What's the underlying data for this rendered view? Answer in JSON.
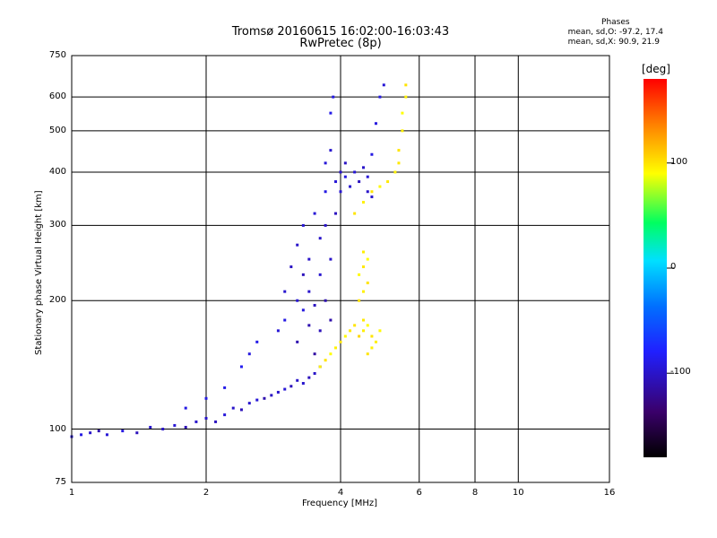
{
  "title_line1": "Tromsø 20160615 16:02:00-16:03:43",
  "title_line2": "RwPretec (8p)",
  "phases": {
    "label": "Phases",
    "o_line": "mean, sd,O: -97.2, 17.4",
    "x_line": "mean, sd,X: 90.9, 21.9"
  },
  "chart_data": {
    "type": "scatter",
    "xlabel": "Frequency [MHz]",
    "ylabel": "Stationary phase Virtual Height [km]",
    "xscale": "log",
    "yscale": "log",
    "xlim": [
      1,
      16
    ],
    "ylim": [
      75,
      750
    ],
    "xticks": [
      1,
      2,
      4,
      6,
      8,
      10,
      16
    ],
    "yticks": [
      75,
      100,
      200,
      300,
      400,
      500,
      600,
      750
    ],
    "colorbar": {
      "unit": "[deg]",
      "range": [
        -180,
        180
      ],
      "ticks": [
        100,
        0,
        -100
      ],
      "colors": [
        "#000000",
        "#3a006a",
        "#2020ff",
        "#0070ff",
        "#00e0ff",
        "#00ff60",
        "#ffff00",
        "#ff8000",
        "#ff0000"
      ]
    },
    "series": [
      {
        "mode": "O",
        "points": [
          [
            1.0,
            96,
            -95
          ],
          [
            1.05,
            97,
            -90
          ],
          [
            1.1,
            98,
            -100
          ],
          [
            1.15,
            99,
            -110
          ],
          [
            1.2,
            97,
            -95
          ],
          [
            1.3,
            99,
            -92
          ],
          [
            1.4,
            98,
            -105
          ],
          [
            1.5,
            101,
            -98
          ],
          [
            1.6,
            100,
            -100
          ],
          [
            1.7,
            102,
            -96
          ],
          [
            1.8,
            101,
            -108
          ],
          [
            1.9,
            104,
            -99
          ],
          [
            2.0,
            106,
            -100
          ],
          [
            2.1,
            104,
            -104
          ],
          [
            2.2,
            108,
            -94
          ],
          [
            2.3,
            112,
            -100
          ],
          [
            2.4,
            111,
            -106
          ],
          [
            2.5,
            115,
            -98
          ],
          [
            2.6,
            117,
            -95
          ],
          [
            2.7,
            118,
            -110
          ],
          [
            2.8,
            120,
            -102
          ],
          [
            2.9,
            122,
            -99
          ],
          [
            3.0,
            124,
            -95
          ],
          [
            3.1,
            126,
            -106
          ],
          [
            3.2,
            130,
            -100
          ],
          [
            3.3,
            128,
            -98
          ],
          [
            3.4,
            132,
            -105
          ],
          [
            3.5,
            135,
            -100
          ],
          [
            3.6,
            140,
            -92
          ],
          [
            1.8,
            112,
            -90
          ],
          [
            2.0,
            118,
            -90
          ],
          [
            2.2,
            125,
            -88
          ],
          [
            2.4,
            140,
            -85
          ],
          [
            2.5,
            150,
            -92
          ],
          [
            2.6,
            160,
            -88
          ],
          [
            2.9,
            170,
            -95
          ],
          [
            3.0,
            180,
            -90
          ],
          [
            3.0,
            210,
            -98
          ],
          [
            3.1,
            240,
            -102
          ],
          [
            3.2,
            200,
            -96
          ],
          [
            3.2,
            270,
            -100
          ],
          [
            3.2,
            160,
            -110
          ],
          [
            3.3,
            230,
            -105
          ],
          [
            3.3,
            190,
            -92
          ],
          [
            3.3,
            300,
            -96
          ],
          [
            3.4,
            250,
            -100
          ],
          [
            3.4,
            175,
            -110
          ],
          [
            3.4,
            210,
            -99
          ],
          [
            3.5,
            320,
            -95
          ],
          [
            3.5,
            195,
            -104
          ],
          [
            3.5,
            150,
            -115
          ],
          [
            3.6,
            280,
            -100
          ],
          [
            3.6,
            230,
            -98
          ],
          [
            3.6,
            170,
            -106
          ],
          [
            3.7,
            360,
            -90
          ],
          [
            3.7,
            420,
            -95
          ],
          [
            3.7,
            300,
            -100
          ],
          [
            3.7,
            200,
            -110
          ],
          [
            3.8,
            450,
            -98
          ],
          [
            3.8,
            550,
            -88
          ],
          [
            3.8,
            250,
            -100
          ],
          [
            3.8,
            180,
            -112
          ],
          [
            3.85,
            600,
            -90
          ],
          [
            3.9,
            380,
            -95
          ],
          [
            3.9,
            320,
            -104
          ],
          [
            4.0,
            400,
            -100
          ],
          [
            4.0,
            360,
            -96
          ],
          [
            4.1,
            420,
            -102
          ],
          [
            4.1,
            390,
            -92
          ],
          [
            4.2,
            370,
            -98
          ],
          [
            4.3,
            400,
            -95
          ],
          [
            4.4,
            380,
            -104
          ],
          [
            4.5,
            410,
            -100
          ],
          [
            4.6,
            390,
            -96
          ],
          [
            4.7,
            440,
            -90
          ],
          [
            4.8,
            520,
            -92
          ],
          [
            4.9,
            600,
            -90
          ],
          [
            5.0,
            640,
            -95
          ],
          [
            4.6,
            360,
            -100
          ],
          [
            4.7,
            350,
            -98
          ]
        ]
      },
      {
        "mode": "X",
        "points": [
          [
            3.6,
            140,
            95
          ],
          [
            3.7,
            145,
            100
          ],
          [
            3.8,
            150,
            90
          ],
          [
            3.9,
            155,
            95
          ],
          [
            4.0,
            160,
            100
          ],
          [
            4.1,
            165,
            92
          ],
          [
            4.2,
            170,
            98
          ],
          [
            4.3,
            175,
            100
          ],
          [
            4.4,
            165,
            105
          ],
          [
            4.5,
            170,
            96
          ],
          [
            4.6,
            175,
            90
          ],
          [
            4.7,
            165,
            100
          ],
          [
            4.8,
            160,
            95
          ],
          [
            4.9,
            170,
            92
          ],
          [
            4.5,
            180,
            98
          ],
          [
            4.6,
            150,
            100
          ],
          [
            4.7,
            155,
            95
          ],
          [
            4.4,
            200,
            100
          ],
          [
            4.5,
            210,
            95
          ],
          [
            4.4,
            230,
            92
          ],
          [
            4.5,
            240,
            98
          ],
          [
            4.6,
            220,
            100
          ],
          [
            4.5,
            260,
            96
          ],
          [
            4.6,
            250,
            90
          ],
          [
            4.3,
            320,
            100
          ],
          [
            4.5,
            340,
            95
          ],
          [
            4.7,
            360,
            100
          ],
          [
            4.9,
            370,
            92
          ],
          [
            5.1,
            380,
            98
          ],
          [
            5.3,
            400,
            95
          ],
          [
            5.4,
            450,
            100
          ],
          [
            5.5,
            500,
            96
          ],
          [
            5.5,
            550,
            90
          ],
          [
            5.6,
            600,
            95
          ],
          [
            5.6,
            640,
            100
          ],
          [
            5.4,
            420,
            98
          ]
        ]
      }
    ]
  }
}
